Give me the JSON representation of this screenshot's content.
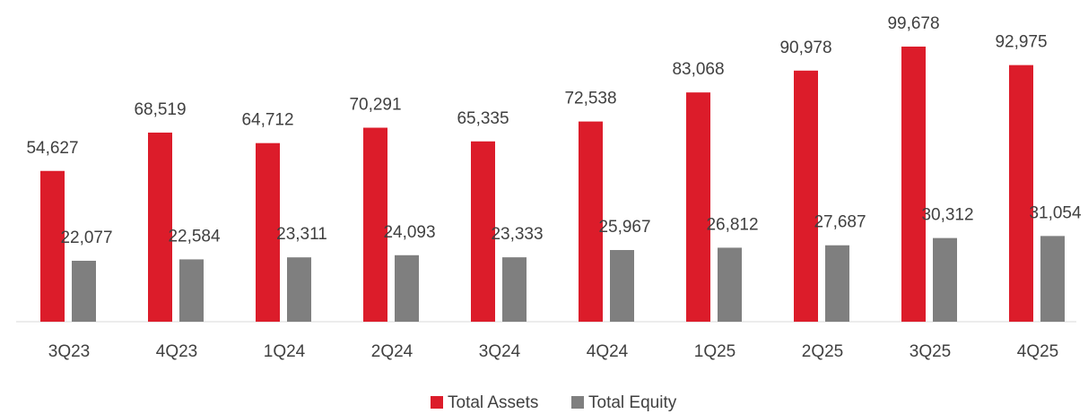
{
  "chart_data": {
    "type": "bar",
    "categories": [
      "3Q23",
      "4Q23",
      "1Q24",
      "2Q24",
      "3Q24",
      "4Q24",
      "1Q25",
      "2Q25",
      "3Q25",
      "4Q25"
    ],
    "series": [
      {
        "name": "Total Assets",
        "color": "#dc1c2a",
        "values": [
          54627,
          68519,
          64712,
          70291,
          65335,
          72538,
          83068,
          90978,
          99678,
          92975
        ],
        "value_labels": [
          "54,627",
          "68,519",
          "64,712",
          "70,291",
          "65,335",
          "72,538",
          "83,068",
          "90,978",
          "99,678",
          "92,975"
        ]
      },
      {
        "name": "Total Equity",
        "color": "#7f7f7f",
        "values": [
          22077,
          22584,
          23311,
          24093,
          23333,
          25967,
          26812,
          27687,
          30312,
          31054
        ],
        "value_labels": [
          "22,077",
          "22,584",
          "23,311",
          "24,093",
          "23,333",
          "25,967",
          "26,812",
          "27,687",
          "30,312",
          "31,054"
        ]
      }
    ],
    "legend": "bottom"
  }
}
